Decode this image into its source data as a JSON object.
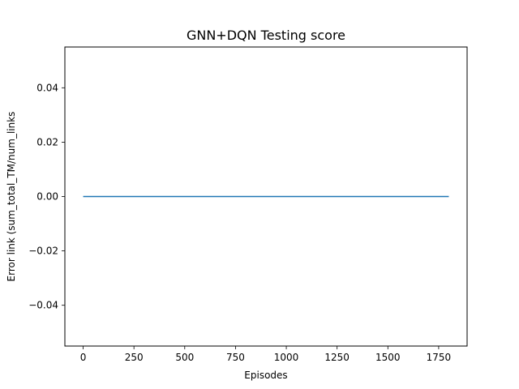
{
  "chart_data": {
    "type": "line",
    "title": "GNN+DQN Testing score",
    "xlabel": "Episodes",
    "ylabel": "Error link (sum_total_TM/num_links",
    "xlim": [
      -90,
      1890
    ],
    "ylim": [
      -0.055,
      0.055
    ],
    "xticks": [
      0,
      250,
      500,
      750,
      1000,
      1250,
      1500,
      1750
    ],
    "xtick_labels": [
      "0",
      "250",
      "500",
      "750",
      "1000",
      "1250",
      "1500",
      "1750"
    ],
    "yticks": [
      -0.04,
      -0.02,
      0.0,
      0.02,
      0.04
    ],
    "ytick_labels": [
      "−0.04",
      "−0.02",
      "0.00",
      "0.02",
      "0.04"
    ],
    "series": [
      {
        "color": "#1f77b4",
        "x": [
          0,
          1800
        ],
        "y": [
          0.0,
          0.0
        ]
      }
    ],
    "grid": false,
    "legend": "none"
  }
}
